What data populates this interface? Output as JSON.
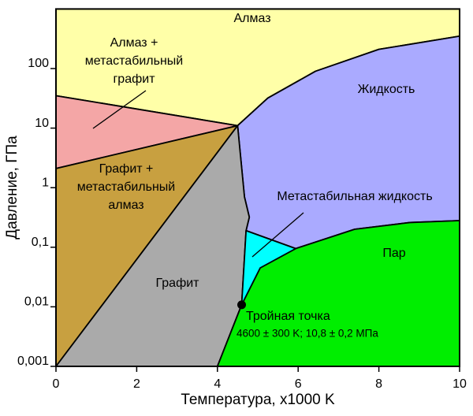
{
  "chart_data": {
    "type": "phase-diagram",
    "xlabel": "Температура, x1000 K",
    "ylabel": "Давление, ГПа",
    "xlim": [
      0,
      10
    ],
    "xticks": [
      0,
      2,
      4,
      6,
      8,
      10
    ],
    "ylim": [
      0.001,
      1000
    ],
    "yscale": "log",
    "yticks": [
      {
        "value": 0.001,
        "label": "0,001"
      },
      {
        "value": 0.01,
        "label": "0,01"
      },
      {
        "value": 0.1,
        "label": "0,1"
      },
      1,
      10,
      100
    ],
    "regions": [
      {
        "label": [
          "Алмаз"
        ],
        "color": "#ffffa8",
        "x": [
          0,
          10,
          10,
          8,
          6.43,
          5.25,
          4.5,
          0
        ],
        "y": [
          1000,
          1000,
          350,
          210,
          90,
          32,
          11,
          35
        ]
      },
      {
        "label": [
          "Жидкость"
        ],
        "color": "#aaaaff",
        "x": [
          4.5,
          5.25,
          6.43,
          8,
          10,
          10,
          8.77,
          7.4,
          5.94,
          4.71,
          4.79,
          4.67
        ],
        "y": [
          11,
          32,
          90,
          210,
          350,
          0.28,
          0.26,
          0.2,
          0.095,
          0.19,
          0.32,
          0.7
        ]
      },
      {
        "label": [
          "Алмаз +",
          "метастабильный",
          "графит"
        ],
        "color": "#f4a6a6",
        "x": [
          0,
          4.5,
          0
        ],
        "y": [
          35,
          11,
          2.1
        ]
      },
      {
        "label": [
          "Графит +",
          "метастабильный",
          "алмаз"
        ],
        "color": "#c8a040",
        "x": [
          0,
          4.5,
          0
        ],
        "y": [
          2.1,
          11,
          0.001
        ]
      },
      {
        "label": [
          "Графит"
        ],
        "color": "#aaaaaa",
        "x": [
          0,
          4.5,
          4.67,
          4.79,
          4.71,
          4.6,
          4.0
        ],
        "y": [
          0.001,
          11,
          0.7,
          0.32,
          0.19,
          0.0108,
          0.001
        ]
      },
      {
        "label": [
          "Пар"
        ],
        "color": "#00ee00",
        "x": [
          4.0,
          4.6,
          5.06,
          5.94,
          7.4,
          8.77,
          10,
          10
        ],
        "y": [
          0.001,
          0.0108,
          0.045,
          0.095,
          0.2,
          0.26,
          0.28,
          0.001
        ]
      },
      {
        "label": [
          "Метастабильная жидкость"
        ],
        "color": "#00ffff",
        "x": [
          4.6,
          4.71,
          5.94,
          5.06
        ],
        "y": [
          0.0108,
          0.19,
          0.095,
          0.045
        ]
      }
    ],
    "triple_point": {
      "x": 4.6,
      "y": 0.0108,
      "label": [
        "Тройная точка",
        "4600 ± 300 K; 10,8 ± 0,2 МПа"
      ]
    }
  }
}
